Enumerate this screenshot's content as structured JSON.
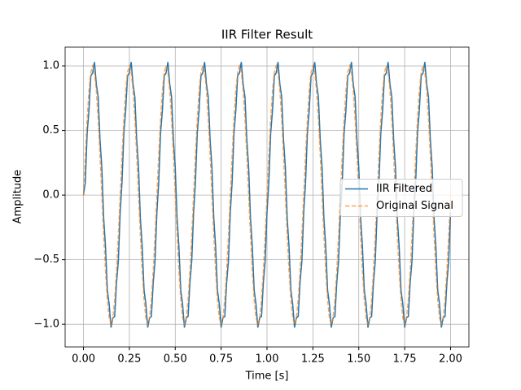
{
  "chart_data": {
    "type": "line",
    "title": "IIR Filter Result",
    "x_label": "Time [s]",
    "y_label": "Amplitude",
    "xlim": [
      -0.1,
      2.1
    ],
    "ylim": [
      -1.175,
      1.145
    ],
    "xticks": [
      {
        "value": 0,
        "label": "0.00"
      },
      {
        "value": 0.25,
        "label": "0.25"
      },
      {
        "value": 0.5,
        "label": "0.50"
      },
      {
        "value": 0.75,
        "label": "0.75"
      },
      {
        "value": 1,
        "label": "1.00"
      },
      {
        "value": 1.25,
        "label": "1.25"
      },
      {
        "value": 1.5,
        "label": "1.50"
      },
      {
        "value": 1.75,
        "label": "1.75"
      },
      {
        "value": 2,
        "label": "2.00"
      }
    ],
    "yticks": [
      {
        "value": -1,
        "label": "−1.0"
      },
      {
        "value": -0.5,
        "label": "−0.5"
      },
      {
        "value": 0,
        "label": "0.0"
      },
      {
        "value": 0.5,
        "label": "0.5"
      },
      {
        "value": 1,
        "label": "1.0"
      }
    ],
    "grid": true,
    "legend": "center right",
    "x": [
      0,
      0.01,
      0.02,
      0.03,
      0.04,
      0.05,
      0.06,
      0.07,
      0.08,
      0.09,
      0.1,
      0.11,
      0.12,
      0.13,
      0.14,
      0.15,
      0.16,
      0.17,
      0.18,
      0.19,
      0.2,
      0.21,
      0.22,
      0.23,
      0.24,
      0.25,
      0.26,
      0.27,
      0.28,
      0.29,
      0.3,
      0.31,
      0.32,
      0.33,
      0.34,
      0.35,
      0.36,
      0.37,
      0.38,
      0.39,
      0.4,
      0.41,
      0.42,
      0.43,
      0.44,
      0.45,
      0.46,
      0.47,
      0.48,
      0.49,
      0.5,
      0.51,
      0.52,
      0.53,
      0.54,
      0.55,
      0.56,
      0.57,
      0.58,
      0.59,
      0.6,
      0.61,
      0.62,
      0.63,
      0.64,
      0.65,
      0.66,
      0.67,
      0.68,
      0.69,
      0.7,
      0.71,
      0.72,
      0.73,
      0.74,
      0.75,
      0.76,
      0.77,
      0.78,
      0.79,
      0.8,
      0.81,
      0.82,
      0.83,
      0.84,
      0.85,
      0.86,
      0.87,
      0.88,
      0.89,
      0.9,
      0.91,
      0.92,
      0.93,
      0.94,
      0.95,
      0.96,
      0.97,
      0.98,
      0.99,
      1,
      1.01,
      1.02,
      1.03,
      1.04,
      1.05,
      1.06,
      1.07,
      1.08,
      1.09,
      1.1,
      1.11,
      1.12,
      1.13,
      1.14,
      1.15,
      1.16,
      1.17,
      1.18,
      1.19,
      1.2,
      1.21,
      1.22,
      1.23,
      1.24,
      1.25,
      1.26,
      1.27,
      1.28,
      1.29,
      1.3,
      1.31,
      1.32,
      1.33,
      1.34,
      1.35,
      1.36,
      1.37,
      1.38,
      1.39,
      1.4,
      1.41,
      1.42,
      1.43,
      1.44,
      1.45,
      1.46,
      1.47,
      1.48,
      1.49,
      1.5,
      1.51,
      1.52,
      1.53,
      1.54,
      1.55,
      1.56,
      1.57,
      1.58,
      1.59,
      1.6,
      1.61,
      1.62,
      1.63,
      1.64,
      1.65,
      1.66,
      1.67,
      1.68,
      1.69,
      1.7,
      1.71,
      1.72,
      1.73,
      1.74,
      1.75,
      1.76,
      1.77,
      1.78,
      1.79,
      1.8,
      1.81,
      1.82,
      1.83,
      1.84,
      1.85,
      1.86,
      1.87,
      1.88,
      1.89,
      1.9,
      1.91,
      1.92,
      1.93,
      1.94,
      1.95,
      1.96,
      1.97,
      1.98,
      1.99,
      2
    ],
    "series": [
      {
        "name": "IIR Filtered",
        "color": "#1f77b4",
        "dashed": false,
        "values": [
          0,
          0.099,
          0.478,
          0.655,
          0.923,
          0.945,
          1.03,
          0.859,
          0.759,
          0.429,
          0.214,
          -0.179,
          -0.398,
          -0.735,
          -0.843,
          -1.025,
          -0.95,
          -0.939,
          -0.679,
          -0.509,
          -0.134,
          0.099,
          0.478,
          0.655,
          0.923,
          0.945,
          1.03,
          0.859,
          0.759,
          0.429,
          0.214,
          -0.179,
          -0.398,
          -0.735,
          -0.843,
          -1.025,
          -0.95,
          -0.939,
          -0.679,
          -0.509,
          -0.134,
          0.099,
          0.478,
          0.655,
          0.923,
          0.945,
          1.03,
          0.859,
          0.759,
          0.429,
          0.214,
          -0.179,
          -0.398,
          -0.735,
          -0.843,
          -1.025,
          -0.95,
          -0.939,
          -0.679,
          -0.509,
          -0.134,
          0.099,
          0.478,
          0.655,
          0.923,
          0.945,
          1.03,
          0.859,
          0.759,
          0.429,
          0.214,
          -0.179,
          -0.398,
          -0.735,
          -0.843,
          -1.025,
          -0.95,
          -0.939,
          -0.679,
          -0.509,
          -0.134,
          0.099,
          0.478,
          0.655,
          0.923,
          0.945,
          1.03,
          0.859,
          0.759,
          0.429,
          0.214,
          -0.179,
          -0.398,
          -0.735,
          -0.843,
          -1.025,
          -0.95,
          -0.939,
          -0.679,
          -0.509,
          -0.134,
          0.099,
          0.478,
          0.655,
          0.923,
          0.945,
          1.03,
          0.859,
          0.759,
          0.429,
          0.214,
          -0.179,
          -0.398,
          -0.735,
          -0.843,
          -1.025,
          -0.95,
          -0.939,
          -0.679,
          -0.509,
          -0.134,
          0.099,
          0.478,
          0.655,
          0.923,
          0.945,
          1.03,
          0.859,
          0.759,
          0.429,
          0.214,
          -0.179,
          -0.398,
          -0.735,
          -0.843,
          -1.025,
          -0.95,
          -0.939,
          -0.679,
          -0.509,
          -0.134,
          0.099,
          0.478,
          0.655,
          0.923,
          0.945,
          1.03,
          0.859,
          0.759,
          0.429,
          0.214,
          -0.179,
          -0.398,
          -0.735,
          -0.843,
          -1.025,
          -0.95,
          -0.939,
          -0.679,
          -0.509,
          -0.134,
          0.099,
          0.478,
          0.655,
          0.923,
          0.945,
          1.03,
          0.859,
          0.759,
          0.429,
          0.214,
          -0.179,
          -0.398,
          -0.735,
          -0.843,
          -1.025,
          -0.95,
          -0.939,
          -0.679,
          -0.509,
          -0.134,
          0.099,
          0.478,
          0.655,
          0.923,
          0.945,
          1.03,
          0.859,
          0.759,
          0.429,
          0.214,
          -0.179,
          -0.398,
          -0.735,
          -0.843,
          -1.025,
          -0.95,
          -0.939,
          -0.679,
          -0.509,
          -0.134
        ]
      },
      {
        "name": "Original Signal",
        "color": "#ff7f0e",
        "dashed": true,
        "values": [
          0,
          0.309,
          0.588,
          0.809,
          0.951,
          1,
          0.951,
          0.809,
          0.588,
          0.309,
          0,
          -0.309,
          -0.588,
          -0.809,
          -0.951,
          -1,
          -0.951,
          -0.809,
          -0.588,
          -0.309,
          0,
          0.309,
          0.588,
          0.809,
          0.951,
          1,
          0.951,
          0.809,
          0.588,
          0.309,
          0,
          -0.309,
          -0.588,
          -0.809,
          -0.951,
          -1,
          -0.951,
          -0.809,
          -0.588,
          -0.309,
          0,
          0.309,
          0.588,
          0.809,
          0.951,
          1,
          0.951,
          0.809,
          0.588,
          0.309,
          0,
          -0.309,
          -0.588,
          -0.809,
          -0.951,
          -1,
          -0.951,
          -0.809,
          -0.588,
          -0.309,
          0,
          0.309,
          0.588,
          0.809,
          0.951,
          1,
          0.951,
          0.809,
          0.588,
          0.309,
          0,
          -0.309,
          -0.588,
          -0.809,
          -0.951,
          -1,
          -0.951,
          -0.809,
          -0.588,
          -0.309,
          0,
          0.309,
          0.588,
          0.809,
          0.951,
          1,
          0.951,
          0.809,
          0.588,
          0.309,
          0,
          -0.309,
          -0.588,
          -0.809,
          -0.951,
          -1,
          -0.951,
          -0.809,
          -0.588,
          -0.309,
          0,
          0.309,
          0.588,
          0.809,
          0.951,
          1,
          0.951,
          0.809,
          0.588,
          0.309,
          0,
          -0.309,
          -0.588,
          -0.809,
          -0.951,
          -1,
          -0.951,
          -0.809,
          -0.588,
          -0.309,
          0,
          0.309,
          0.588,
          0.809,
          0.951,
          1,
          0.951,
          0.809,
          0.588,
          0.309,
          0,
          -0.309,
          -0.588,
          -0.809,
          -0.951,
          -1,
          -0.951,
          -0.809,
          -0.588,
          -0.309,
          0,
          0.309,
          0.588,
          0.809,
          0.951,
          1,
          0.951,
          0.809,
          0.588,
          0.309,
          0,
          -0.309,
          -0.588,
          -0.809,
          -0.951,
          -1,
          -0.951,
          -0.809,
          -0.588,
          -0.309,
          0,
          0.309,
          0.588,
          0.809,
          0.951,
          1,
          0.951,
          0.809,
          0.588,
          0.309,
          0,
          -0.309,
          -0.588,
          -0.809,
          -0.951,
          -1,
          -0.951,
          -0.809,
          -0.588,
          -0.309,
          0,
          0.309,
          0.588,
          0.809,
          0.951,
          1,
          0.951,
          0.809,
          0.588,
          0.309,
          0,
          -0.309,
          -0.588,
          -0.809,
          -0.951,
          -1,
          -0.951,
          -0.809,
          -0.588,
          -0.309,
          0
        ]
      }
    ]
  }
}
